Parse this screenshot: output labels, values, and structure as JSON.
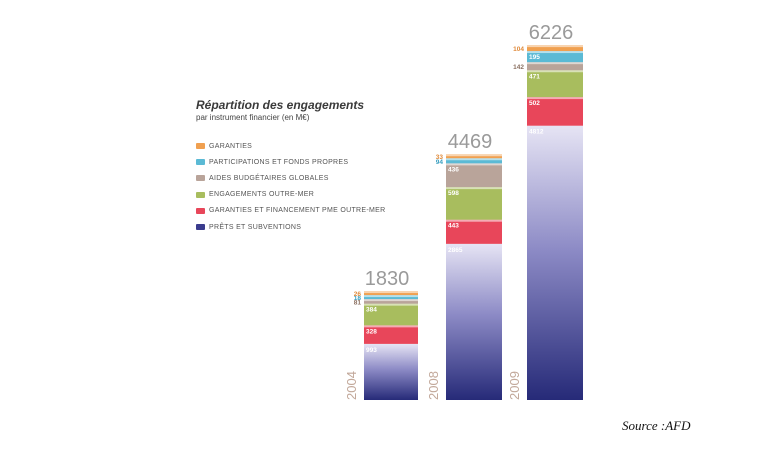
{
  "chart_data": {
    "type": "bar",
    "stacked": true,
    "title": "Répartition des engagements",
    "subtitle": "par instrument financier (en M€)",
    "categories": [
      "2004",
      "2008",
      "2009"
    ],
    "totals": [
      "1830",
      "4469",
      "6226"
    ],
    "series": [
      {
        "name": "PRÊTS ET SUBVENTIONS",
        "color": "#3a3c8e",
        "values": [
          993,
          2865,
          4812
        ],
        "labels": [
          "993",
          "2865",
          "4812"
        ]
      },
      {
        "name": "GARANTIES ET FINANCEMENT PME OUTRE-MER",
        "color": "#e8465a",
        "values": [
          328,
          443,
          502
        ],
        "labels": [
          "328",
          "443",
          "502"
        ]
      },
      {
        "name": "ENGAGEMENTS OUTRE-MER",
        "color": "#a8bd5e",
        "values": [
          384,
          598,
          471
        ],
        "labels": [
          "384",
          "598",
          "471"
        ]
      },
      {
        "name": "AIDES BUDGÉTAIRES GLOBALES",
        "color": "#b9a49a",
        "values": [
          81,
          436,
          142
        ],
        "labels": [
          "81",
          "436",
          "142"
        ]
      },
      {
        "name": "PARTICIPATIONS ET FONDS PROPRES",
        "color": "#5bbad5",
        "values": [
          18,
          94,
          195
        ],
        "labels": [
          "18",
          "94",
          "195"
        ]
      },
      {
        "name": "GARANTIES",
        "color": "#f0a050",
        "values": [
          26,
          33,
          104
        ],
        "labels": [
          "26",
          "33",
          "104"
        ]
      }
    ],
    "legend_order": [
      "GARANTIES",
      "PARTICIPATIONS ET FONDS PROPRES",
      "AIDES BUDGÉTAIRES GLOBALES",
      "ENGAGEMENTS OUTRE-MER",
      "GARANTIES ET FINANCEMENT PME OUTRE-MER",
      "PRÊTS ET SUBVENTIONS"
    ],
    "legend_placement": "top-left",
    "grid": false
  },
  "source": "Source :AFD"
}
